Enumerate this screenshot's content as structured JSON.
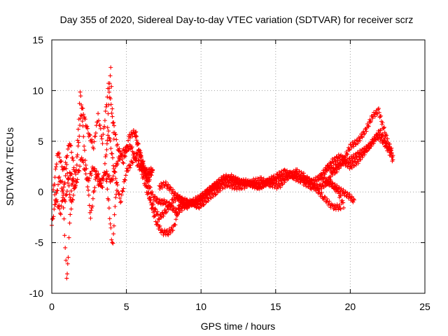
{
  "chart_data": {
    "type": "scatter",
    "title": "Day 355 of 2020, Sidereal Day-to-day VTEC variation (SDTVAR) for receiver scrz",
    "xlabel": "GPS time / hours",
    "ylabel": "SDTVAR / TECUs",
    "xlim": [
      0,
      25
    ],
    "ylim": [
      -10,
      15
    ],
    "xticks": [
      "0",
      "5",
      "10",
      "15",
      "20",
      "25"
    ],
    "yticks": [
      "-10",
      "-5",
      "0",
      "5",
      "10",
      "15"
    ],
    "grid": true,
    "marker": "+",
    "series": [
      {
        "name": "SDTVAR",
        "color": "#ff0000",
        "tracks": [
          {
            "x": [
              0.0,
              0.5,
              0.9,
              1.2,
              1.6,
              2.0,
              2.4,
              2.8,
              3.2,
              3.6,
              4.0,
              4.4,
              4.8,
              5.3,
              5.8,
              6.3,
              6.8
            ],
            "y": [
              -3.3,
              1.5,
              -1.0,
              2.0,
              0.5,
              3.5,
              1.0,
              2.5,
              0.5,
              2.0,
              1.0,
              3.0,
              4.0,
              4.5,
              2.5,
              2.0,
              2.2
            ]
          },
          {
            "x": [
              0.1,
              0.4,
              0.8,
              1.2,
              1.6,
              2.0,
              2.4,
              2.8,
              3.1,
              3.4,
              3.8,
              4.1,
              4.4,
              4.8,
              5.2,
              5.6,
              6.0,
              6.4,
              6.8
            ],
            "y": [
              0.0,
              4.0,
              2.0,
              5.0,
              1.5,
              8.5,
              6.0,
              4.5,
              7.5,
              5.0,
              10.5,
              7.0,
              4.5,
              3.0,
              5.5,
              6.0,
              3.0,
              1.5,
              2.0
            ]
          },
          {
            "x": [
              0.2,
              0.6,
              1.0,
              1.3,
              1.6,
              1.9,
              2.2,
              2.6,
              3.0,
              3.4,
              3.8,
              4.2,
              4.6,
              5.0,
              5.4,
              5.8,
              6.2,
              6.6
            ],
            "y": [
              -0.5,
              -2.0,
              2.5,
              -1.5,
              1.0,
              10.0,
              4.0,
              -2.5,
              2.0,
              0.5,
              6.0,
              2.0,
              -1.0,
              2.0,
              3.0,
              4.0,
              2.5,
              1.0
            ]
          },
          {
            "x": [
              0.7,
              0.9,
              1.0,
              1.1,
              1.2,
              1.3,
              1.5
            ],
            "y": [
              1.0,
              -5.5,
              -8.5,
              -6.5,
              -3.0,
              0.0,
              2.5
            ]
          },
          {
            "x": [
              3.6,
              3.8,
              4.0,
              4.1,
              4.2,
              4.4
            ],
            "y": [
              2.0,
              -1.0,
              -4.5,
              -5.3,
              -2.0,
              1.0
            ]
          },
          {
            "x": [
              3.7,
              3.85,
              3.95,
              4.05,
              4.2
            ],
            "y": [
              5.0,
              10.0,
              12.5,
              8.0,
              4.0
            ]
          },
          {
            "x": [
              5.6,
              6.0,
              6.4,
              6.8,
              7.2,
              7.6,
              8.0,
              8.4,
              8.8,
              9.2,
              9.6,
              10.0,
              10.4,
              10.8,
              11.2,
              11.6,
              12.0,
              12.5,
              13.0,
              13.5,
              14.0,
              14.5,
              15.0,
              15.5,
              16.0,
              16.5,
              17.0,
              17.5,
              18.0,
              18.5,
              19.0,
              19.5,
              20.0,
              20.3
            ],
            "y": [
              5.5,
              3.5,
              1.0,
              -0.5,
              -1.0,
              -1.0,
              -1.5,
              -2.0,
              -1.5,
              -1.2,
              -1.0,
              -0.5,
              0.0,
              0.5,
              1.0,
              1.5,
              1.2,
              1.0,
              1.0,
              0.8,
              0.5,
              1.0,
              1.2,
              1.5,
              1.8,
              1.5,
              1.2,
              1.0,
              1.5,
              1.0,
              0.5,
              0.0,
              -0.5,
              -1.0
            ]
          },
          {
            "x": [
              5.8,
              6.2,
              6.6,
              7.0,
              7.4,
              7.8,
              8.2,
              8.6,
              9.0,
              9.4,
              9.8,
              10.2,
              10.6,
              11.0,
              11.4,
              11.8,
              12.2,
              12.8,
              13.4,
              14.0,
              14.6,
              15.2,
              15.8,
              16.4,
              17.0,
              17.6,
              18.2,
              18.8,
              19.4
            ],
            "y": [
              3.0,
              2.0,
              -1.0,
              -3.0,
              -4.0,
              -4.0,
              -3.5,
              -1.0,
              -1.5,
              -1.0,
              -1.5,
              -1.0,
              -0.5,
              0.0,
              0.5,
              0.8,
              0.5,
              0.5,
              1.0,
              1.2,
              0.8,
              0.5,
              1.5,
              2.0,
              1.5,
              0.5,
              -0.5,
              -1.5,
              -1.5
            ]
          },
          {
            "x": [
              6.0,
              6.4,
              6.8,
              7.2,
              7.6,
              8.0,
              8.4,
              8.8,
              9.2,
              9.6,
              10.0,
              10.4,
              10.8,
              11.2,
              11.6,
              12.0,
              12.6,
              13.2,
              13.8,
              14.4,
              15.0,
              15.6,
              16.2,
              16.8,
              17.4,
              18.0,
              18.6,
              19.2,
              19.6
            ],
            "y": [
              2.0,
              0.0,
              -1.5,
              -2.5,
              -2.0,
              -1.0,
              -0.5,
              -1.0,
              -1.2,
              -0.8,
              -0.5,
              0.0,
              0.5,
              0.8,
              1.2,
              1.5,
              1.0,
              0.8,
              0.5,
              1.0,
              1.5,
              2.0,
              1.5,
              1.0,
              0.5,
              0.5,
              1.0,
              0.0,
              -1.5
            ]
          },
          {
            "x": [
              7.2,
              7.6,
              8.0,
              8.4,
              8.8,
              9.2,
              9.6,
              10.0,
              10.4,
              10.8,
              11.2
            ],
            "y": [
              0.5,
              0.8,
              0.2,
              -0.5,
              -0.8,
              -1.0,
              -1.2,
              -0.8,
              -0.2,
              0.5,
              0.6
            ]
          },
          {
            "x": [
              18.5,
              19.0,
              19.5,
              20.0,
              20.5,
              21.0,
              21.5,
              21.9,
              22.2,
              22.5,
              22.8
            ],
            "y": [
              1.0,
              2.5,
              3.0,
              4.5,
              5.0,
              6.0,
              7.5,
              8.0,
              6.5,
              5.0,
              4.0
            ]
          },
          {
            "x": [
              18.3,
              18.8,
              19.3,
              19.8,
              20.3,
              20.8,
              21.3,
              21.8,
              22.2,
              22.6,
              22.9
            ],
            "y": [
              2.0,
              3.0,
              3.5,
              3.0,
              3.5,
              4.0,
              4.5,
              5.5,
              5.0,
              4.0,
              3.0
            ]
          },
          {
            "x": [
              18.0,
              18.5,
              19.0,
              19.5,
              20.0,
              20.5,
              21.0,
              21.5,
              22.0,
              22.5,
              22.9
            ],
            "y": [
              1.5,
              2.5,
              2.0,
              3.0,
              2.5,
              3.0,
              4.0,
              5.0,
              6.0,
              4.5,
              3.5
            ]
          }
        ]
      }
    ]
  }
}
